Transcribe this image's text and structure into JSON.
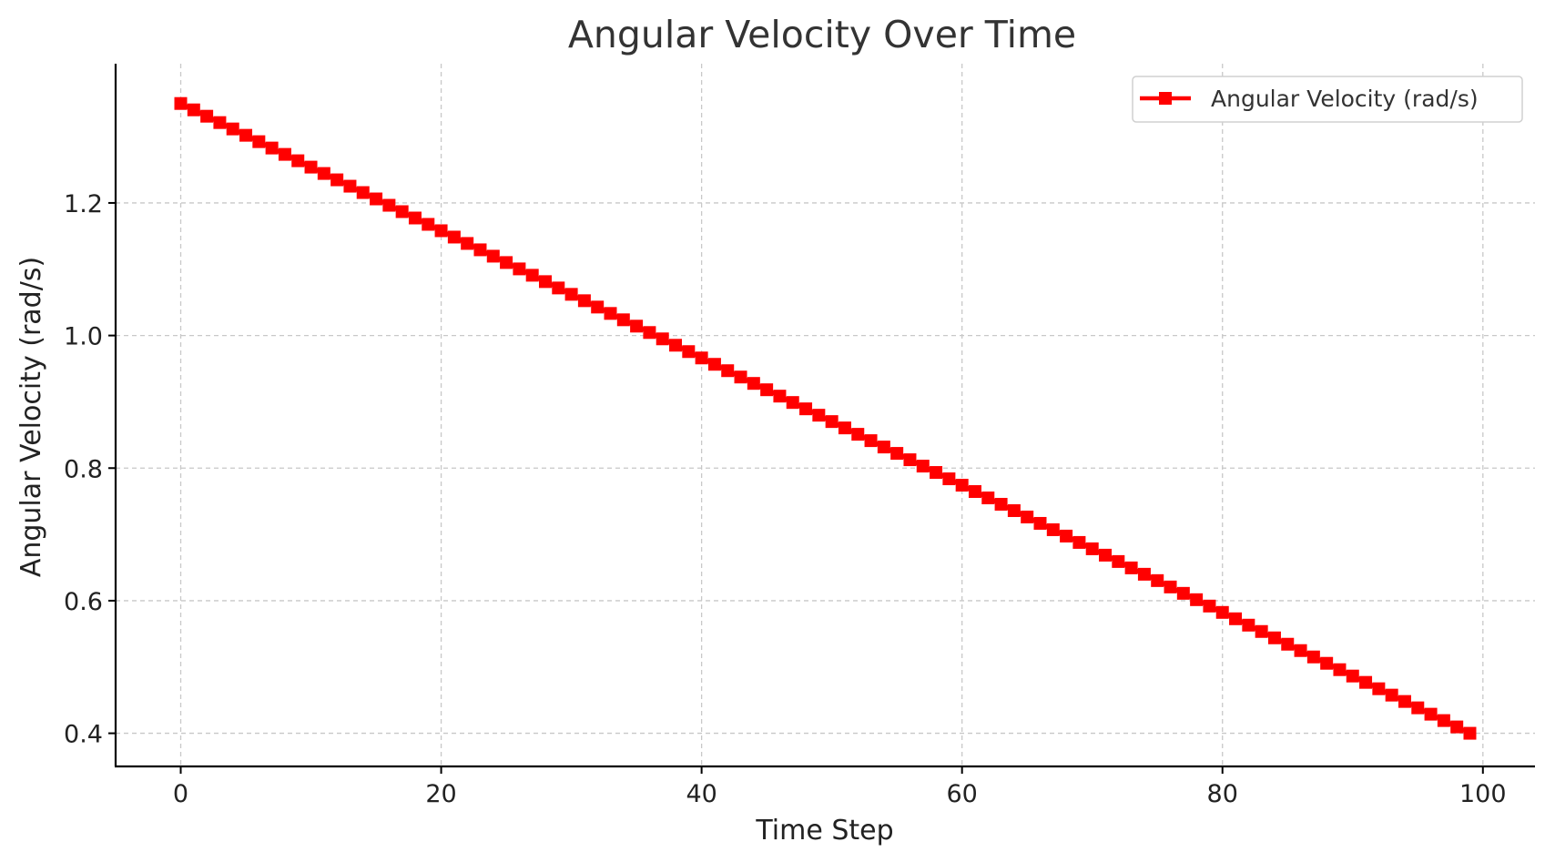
{
  "chart_data": {
    "type": "line",
    "title": "Angular Velocity Over Time",
    "xlabel": "Time Step",
    "ylabel": "Angular Velocity (rad/s)",
    "xlim": [
      -5,
      104
    ],
    "ylim": [
      0.35,
      1.41
    ],
    "xticks": [
      0,
      20,
      40,
      60,
      80,
      100
    ],
    "xtick_labels": [
      "0",
      "20",
      "40",
      "60",
      "80",
      "100"
    ],
    "yticks": [
      0.4,
      0.6,
      0.8,
      1.0,
      1.2
    ],
    "ytick_labels": [
      "0.4",
      "0.6",
      "0.8",
      "1.0",
      "1.2"
    ],
    "grid": true,
    "legend_position": "top-right",
    "series": [
      {
        "name": "Angular Velocity (rad/s)",
        "color": "#ff0000",
        "marker": "square",
        "x_start": 0,
        "x_end": 99,
        "y_start": 1.35,
        "y_end": 0.4,
        "points": 100
      }
    ]
  }
}
